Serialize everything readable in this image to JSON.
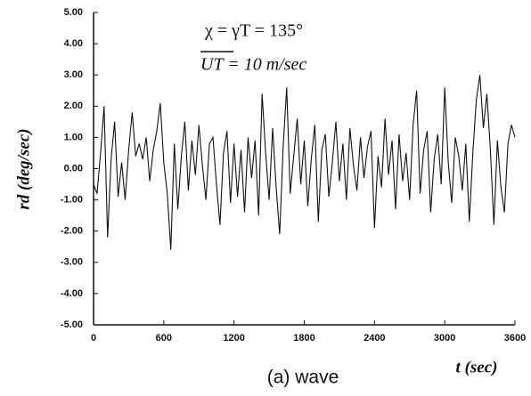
{
  "chart_data": {
    "type": "line",
    "annotations": [
      "χ = γT = 135°",
      "UT = 10 m/sec"
    ],
    "ylabel": "rd (deg/sec)",
    "xlabel": "t (sec)",
    "caption": "(a) wave",
    "xlim": [
      0,
      3600
    ],
    "xticks": [
      0,
      600,
      1200,
      1800,
      2400,
      3000,
      3600
    ],
    "ylim": [
      -5,
      5
    ],
    "yticks": [
      {
        "value": -5,
        "label": "-5.00"
      },
      {
        "value": -4,
        "label": "-4.00"
      },
      {
        "value": -3,
        "label": "-3.00"
      },
      {
        "value": -2,
        "label": "-2.00"
      },
      {
        "value": -1,
        "label": "-1.00"
      },
      {
        "value": 0,
        "label": "0.00"
      },
      {
        "value": 1,
        "label": "1.00"
      },
      {
        "value": 2,
        "label": "2.00"
      },
      {
        "value": 3,
        "label": "3.00"
      },
      {
        "value": 4,
        "label": "4.00"
      },
      {
        "value": 5,
        "label": "5.00"
      }
    ],
    "color": "#111111",
    "x": [
      0,
      30,
      60,
      90,
      120,
      150,
      180,
      210,
      240,
      270,
      300,
      330,
      360,
      390,
      420,
      450,
      480,
      510,
      540,
      570,
      600,
      630,
      660,
      690,
      720,
      750,
      780,
      810,
      840,
      870,
      900,
      930,
      960,
      990,
      1020,
      1050,
      1080,
      1110,
      1140,
      1170,
      1200,
      1230,
      1260,
      1290,
      1320,
      1350,
      1380,
      1410,
      1440,
      1470,
      1500,
      1530,
      1560,
      1590,
      1620,
      1650,
      1680,
      1710,
      1740,
      1770,
      1800,
      1830,
      1860,
      1890,
      1920,
      1950,
      1980,
      2010,
      2040,
      2070,
      2100,
      2130,
      2160,
      2190,
      2220,
      2250,
      2280,
      2310,
      2340,
      2370,
      2400,
      2430,
      2460,
      2490,
      2520,
      2550,
      2580,
      2610,
      2640,
      2670,
      2700,
      2730,
      2760,
      2790,
      2820,
      2850,
      2880,
      2910,
      2940,
      2970,
      3000,
      3030,
      3060,
      3090,
      3120,
      3150,
      3180,
      3210,
      3240,
      3270,
      3300,
      3330,
      3360,
      3390,
      3420,
      3450,
      3480,
      3510,
      3540,
      3570,
      3600
    ],
    "values": [
      -0.5,
      -0.8,
      0.5,
      2.0,
      -2.2,
      0.3,
      1.5,
      -0.9,
      0.2,
      -1.0,
      0.6,
      1.8,
      0.4,
      0.8,
      0.3,
      1.0,
      -0.4,
      0.6,
      1.2,
      2.1,
      0.2,
      -0.8,
      -2.6,
      0.8,
      -1.3,
      0.4,
      1.5,
      -0.7,
      0.9,
      -0.2,
      1.4,
      0.1,
      -1.0,
      0.8,
      1.0,
      -0.5,
      -1.8,
      0.5,
      1.2,
      -1.1,
      0.8,
      -0.9,
      0.6,
      -1.4,
      1.0,
      -0.3,
      0.9,
      -1.5,
      2.4,
      0.5,
      -1.0,
      1.3,
      -0.6,
      -2.1,
      0.7,
      2.6,
      -0.8,
      0.4,
      1.6,
      -0.5,
      0.9,
      -1.2,
      0.3,
      1.4,
      -1.7,
      0.6,
      1.1,
      -0.9,
      0.2,
      1.5,
      -0.4,
      0.8,
      -1.0,
      1.3,
      0.1,
      -0.7,
      1.0,
      -0.3,
      0.7,
      1.2,
      -1.9,
      0.4,
      -0.6,
      1.6,
      -0.2,
      0.9,
      -1.3,
      1.1,
      -0.4,
      0.5,
      -1.0,
      1.4,
      2.5,
      -0.8,
      0.6,
      1.2,
      -1.4,
      0.3,
      1.1,
      -0.5,
      2.6,
      0.2,
      -1.1,
      1.0,
      0.4,
      -0.7,
      0.8,
      -1.7,
      0.5,
      2.2,
      3.0,
      1.3,
      2.4,
      0.6,
      -1.8,
      0.9,
      -0.6,
      -1.4,
      0.8,
      1.4,
      1.0
    ]
  }
}
